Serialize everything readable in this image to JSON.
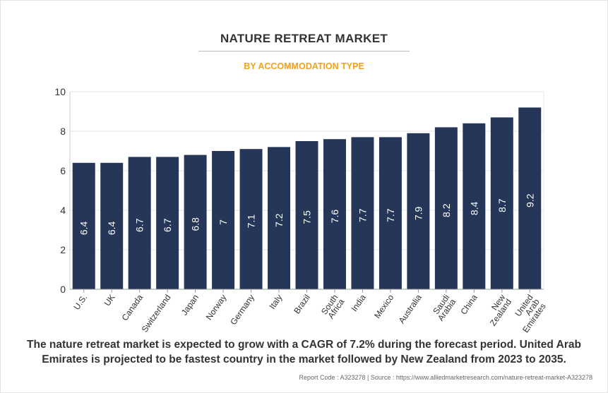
{
  "header": {
    "title": "NATURE RETREAT MARKET",
    "subtitle": "BY ACCOMMODATION TYPE"
  },
  "footer": {
    "caption": "The nature retreat market is expected to grow with a CAGR of 7.2% during the forecast period. United Arab Emirates is projected to be fastest country in the market followed by New Zealand from 2023 to 2035.",
    "source": "Report Code : A323278  |  Source : https://www.alliedmarketresearch.com/nature-retreat-market-A323278"
  },
  "colors": {
    "bar": "#253658",
    "title": "#333333",
    "subtitle": "#f0a21b",
    "label": "#ffffff",
    "grid": "#e6e6e6"
  },
  "chart_data": {
    "type": "bar",
    "title": "NATURE RETREAT MARKET",
    "subtitle": "BY ACCOMMODATION TYPE",
    "xlabel": "",
    "ylabel": "",
    "ylim": [
      0,
      10
    ],
    "yticks": [
      0,
      2,
      4,
      6,
      8,
      10
    ],
    "grid": true,
    "legend": "none",
    "categories": [
      "U.S.",
      "UK",
      "Canada",
      "Switzerland",
      "Japan",
      "Norway",
      "Germany",
      "Italy",
      "Brazil",
      "South Africa",
      "India",
      "Mexico",
      "Australia",
      "Saudi Arabia",
      "China",
      "New Zealand",
      "United Arab Emirates"
    ],
    "values": [
      6.4,
      6.4,
      6.7,
      6.7,
      6.8,
      7,
      7.1,
      7.2,
      7.5,
      7.6,
      7.7,
      7.7,
      7.9,
      8.2,
      8.4,
      8.7,
      9.2
    ]
  }
}
